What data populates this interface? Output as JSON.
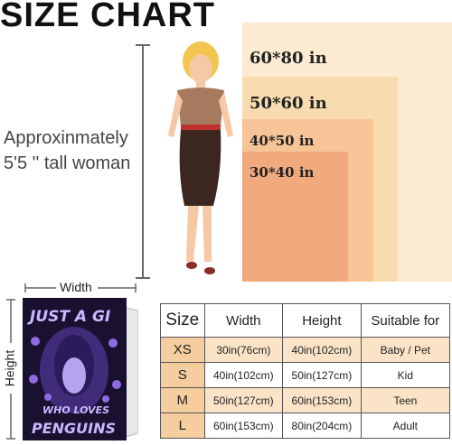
{
  "header": {
    "title": "SIZE CHART"
  },
  "model_note": [
    "Approxinmately",
    "5'5 '' tall woman"
  ],
  "sizes": [
    "60*80 in",
    "50*60 in",
    "40*50 in",
    "30*40 in"
  ],
  "blanket": {
    "width_label": "Width",
    "height_label": "Height",
    "print_text": [
      "JUST A GI",
      "WHO LOVES",
      "PENGUINS"
    ]
  },
  "table": {
    "header": [
      "Size",
      "Width",
      "Height",
      "Suitable for"
    ],
    "rows": [
      [
        "XS",
        "30in(76cm)",
        "40in(102cm)",
        "Baby / Pet"
      ],
      [
        "S",
        "40in(102cm)",
        "50in(127cm)",
        "Kid"
      ],
      [
        "M",
        "50in(127cm)",
        "60in(153cm)",
        "Teen"
      ],
      [
        "L",
        "60in(153cm)",
        "80in(204cm)",
        "Adult"
      ]
    ]
  }
}
